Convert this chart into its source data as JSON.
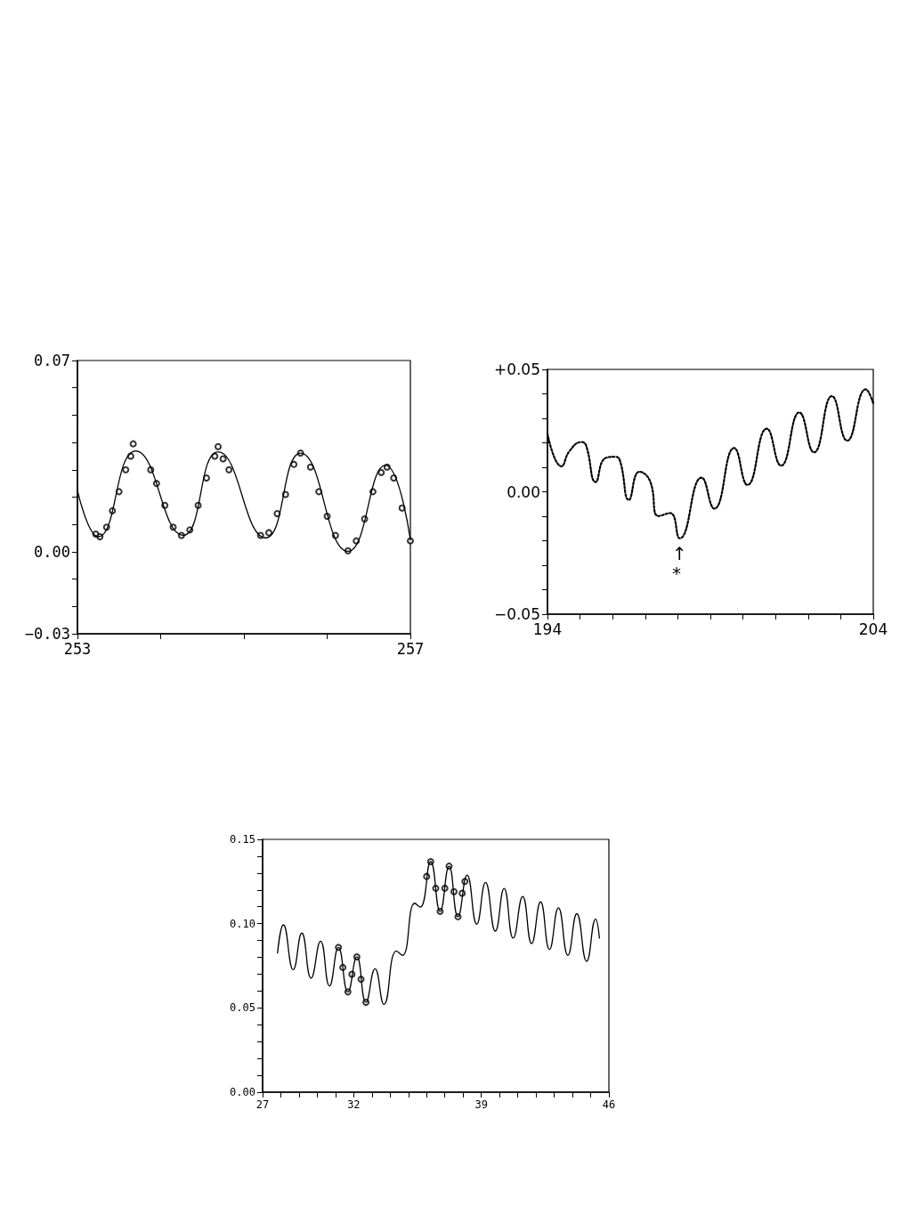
{
  "chart_data": [
    {
      "type": "scatter",
      "marker": "circle",
      "grid": false,
      "xlim": [
        253,
        257
      ],
      "xticks": [
        253,
        {
          "value": 254,
          "label": null
        },
        {
          "value": 255,
          "label": null
        },
        {
          "value": 256,
          "label": null
        },
        257
      ],
      "ylim": [
        -0.03,
        0.07
      ],
      "yticks": [
        {
          "value": -0.03,
          "label": "−0.03"
        },
        {
          "value": -0.02,
          "label": null
        },
        {
          "value": -0.01,
          "label": null
        },
        {
          "value": 0,
          "label": "0.00"
        },
        {
          "value": 0.01,
          "label": null
        },
        {
          "value": 0.02,
          "label": null
        },
        {
          "value": 0.03,
          "label": null
        },
        {
          "value": 0.04,
          "label": null
        },
        {
          "value": 0.05,
          "label": null
        },
        {
          "value": 0.06,
          "label": null
        },
        0.07
      ],
      "series": [
        {
          "color": "#000000",
          "x": [
            253.22,
            253.27,
            253.35,
            253.42,
            253.5,
            253.58,
            253.64,
            253.67,
            253.88,
            253.95,
            254.05,
            254.15,
            254.25,
            254.35,
            254.45,
            254.55,
            254.65,
            254.69,
            254.75,
            254.82,
            255.2,
            255.3,
            255.4,
            255.5,
            255.6,
            255.68,
            255.8,
            255.9,
            256.0,
            256.1,
            256.25,
            256.35,
            256.45,
            256.55,
            256.65,
            256.72,
            256.8,
            256.9,
            257.0
          ],
          "values": [
            0.0065,
            0.0055,
            0.009,
            0.015,
            0.022,
            0.03,
            0.035,
            0.0395,
            0.03,
            0.025,
            0.017,
            0.009,
            0.006,
            0.008,
            0.017,
            0.027,
            0.035,
            0.0385,
            0.034,
            0.03,
            0.006,
            0.007,
            0.014,
            0.021,
            0.032,
            0.0361,
            0.031,
            0.022,
            0.013,
            0.006,
            0.0004,
            0.004,
            0.012,
            0.022,
            0.029,
            0.031,
            0.027,
            0.016,
            0.004
          ]
        },
        {
          "type": "line",
          "marker": "none",
          "color": "#000000",
          "x": [
            253.0,
            253.25,
            253.7,
            254.27,
            254.69,
            255.26,
            255.68,
            256.25,
            256.7,
            257.0
          ],
          "values": [
            0.0224,
            0.0055,
            0.0369,
            0.006,
            0.0366,
            0.0051,
            0.0361,
            0.0002,
            0.0317,
            0.0044
          ]
        }
      ]
    },
    {
      "type": "line",
      "marker": "none",
      "line_style": "dotted",
      "grid": false,
      "xlim": [
        194,
        204
      ],
      "xticks": [
        194,
        {
          "value": 195,
          "label": null
        },
        {
          "value": 196,
          "label": null
        },
        {
          "value": 197,
          "label": null
        },
        {
          "value": 198,
          "label": null
        },
        {
          "value": 199,
          "label": null
        },
        {
          "value": 200,
          "label": null
        },
        {
          "value": 201,
          "label": null
        },
        {
          "value": 202,
          "label": null
        },
        {
          "value": 203,
          "label": null
        },
        204
      ],
      "ylim": [
        -0.05,
        0.05
      ],
      "yticks": [
        {
          "value": -0.05,
          "label": "−0.05"
        },
        {
          "value": -0.04,
          "label": null
        },
        {
          "value": -0.03,
          "label": null
        },
        {
          "value": -0.02,
          "label": null
        },
        {
          "value": -0.01,
          "label": null
        },
        {
          "value": 0,
          "label": "0.00"
        },
        {
          "value": 0.01,
          "label": null
        },
        {
          "value": 0.02,
          "label": null
        },
        {
          "value": 0.03,
          "label": null
        },
        {
          "value": 0.04,
          "label": null
        },
        {
          "value": 0.05,
          "label": "+0.05"
        }
      ],
      "annotations": [
        "↑",
        "*"
      ],
      "series": [
        {
          "color": "#000000",
          "x": [
            194.0,
            194.43,
            194.68,
            195.05,
            195.18,
            195.48,
            195.77,
            196.09,
            196.23,
            196.5,
            196.82,
            197.14,
            197.41,
            197.77,
            198.06,
            198.73,
            199.12,
            199.73,
            200.14,
            200.73,
            201.17,
            201.73,
            202.18,
            202.73,
            203.2,
            203.77,
            204.0
          ],
          "values": [
            0.0237,
            0.0104,
            0.0167,
            0.0203,
            0.0191,
            0.004,
            0.0137,
            0.0143,
            0.0125,
            -0.0033,
            0.0082,
            0.0046,
            -0.0099,
            -0.0087,
            -0.019,
            0.0058,
            -0.0069,
            0.0179,
            0.0028,
            0.0258,
            0.0107,
            0.0324,
            0.0161,
            0.0391,
            0.0209,
            0.0419,
            0.0361
          ]
        }
      ]
    },
    {
      "type": "line",
      "marker": "circle",
      "grid": false,
      "xlim": [
        27,
        46
      ],
      "xticks": [
        27,
        {
          "value": 28,
          "label": null
        },
        {
          "value": 29,
          "label": null
        },
        {
          "value": 30,
          "label": null
        },
        {
          "value": 31,
          "label": null
        },
        32,
        {
          "value": 33,
          "label": null
        },
        {
          "value": 34,
          "label": null
        },
        {
          "value": 35,
          "label": null
        },
        {
          "value": 36,
          "label": null
        },
        {
          "value": 37,
          "label": null
        },
        {
          "value": 38,
          "label": null
        },
        39,
        {
          "value": 40,
          "label": null
        },
        {
          "value": 41,
          "label": null
        },
        {
          "value": 42,
          "label": null
        },
        {
          "value": 43,
          "label": null
        },
        {
          "value": 44,
          "label": null
        },
        {
          "value": 45,
          "label": null
        },
        46
      ],
      "ylim": [
        0,
        0.15
      ],
      "yticks": [
        {
          "value": 0,
          "label": "0.00"
        },
        {
          "value": 0.01,
          "label": null
        },
        {
          "value": 0.02,
          "label": null
        },
        {
          "value": 0.03,
          "label": null
        },
        {
          "value": 0.04,
          "label": null
        },
        {
          "value": 0.05,
          "label": "0.05"
        },
        {
          "value": 0.06,
          "label": null
        },
        {
          "value": 0.07,
          "label": null
        },
        {
          "value": 0.08,
          "label": null
        },
        {
          "value": 0.09,
          "label": null
        },
        {
          "value": 0.1,
          "label": "0.10"
        },
        {
          "value": 0.11,
          "label": null
        },
        {
          "value": 0.12,
          "label": null
        },
        {
          "value": 0.13,
          "label": null
        },
        {
          "value": 0.14,
          "label": null
        },
        {
          "value": 0.15,
          "label": "0.15"
        }
      ],
      "series": [
        {
          "type": "scatter",
          "color": "#000000",
          "x": [
            31.16,
            31.4,
            31.68,
            31.9,
            32.17,
            32.4,
            32.67,
            36.0,
            36.22,
            36.5,
            36.74,
            37.0,
            37.23,
            37.5,
            37.72,
            37.95,
            38.1
          ],
          "values": [
            0.0859,
            0.074,
            0.0595,
            0.07,
            0.0803,
            0.067,
            0.0533,
            0.128,
            0.1368,
            0.121,
            0.1073,
            0.121,
            0.1341,
            0.119,
            0.1041,
            0.118,
            0.125
          ]
        },
        {
          "marker": "none",
          "color": "#000000",
          "x": [
            27.82,
            28.14,
            28.68,
            29.15,
            29.66,
            30.18,
            30.67,
            31.16,
            31.68,
            32.17,
            32.67,
            33.17,
            33.66,
            34.34,
            34.67,
            35.35,
            35.65,
            36.22,
            36.74,
            37.23,
            37.72,
            38.22,
            38.75,
            39.23,
            39.77,
            40.25,
            40.75,
            41.27,
            41.76,
            42.25,
            42.74,
            43.23,
            43.75,
            44.24,
            44.78,
            45.27,
            45.48
          ],
          "values": [
            0.0826,
            0.0993,
            0.0727,
            0.0944,
            0.0676,
            0.0896,
            0.063,
            0.0859,
            0.0595,
            0.0803,
            0.0533,
            0.0732,
            0.0521,
            0.0838,
            0.0812,
            0.1121,
            0.1098,
            0.1368,
            0.1073,
            0.1341,
            0.1041,
            0.1288,
            0.0997,
            0.1244,
            0.0956,
            0.1209,
            0.0914,
            0.1161,
            0.0882,
            0.1129,
            0.0847,
            0.1094,
            0.0812,
            0.1059,
            0.0776,
            0.1027,
            0.0914
          ]
        }
      ]
    }
  ]
}
